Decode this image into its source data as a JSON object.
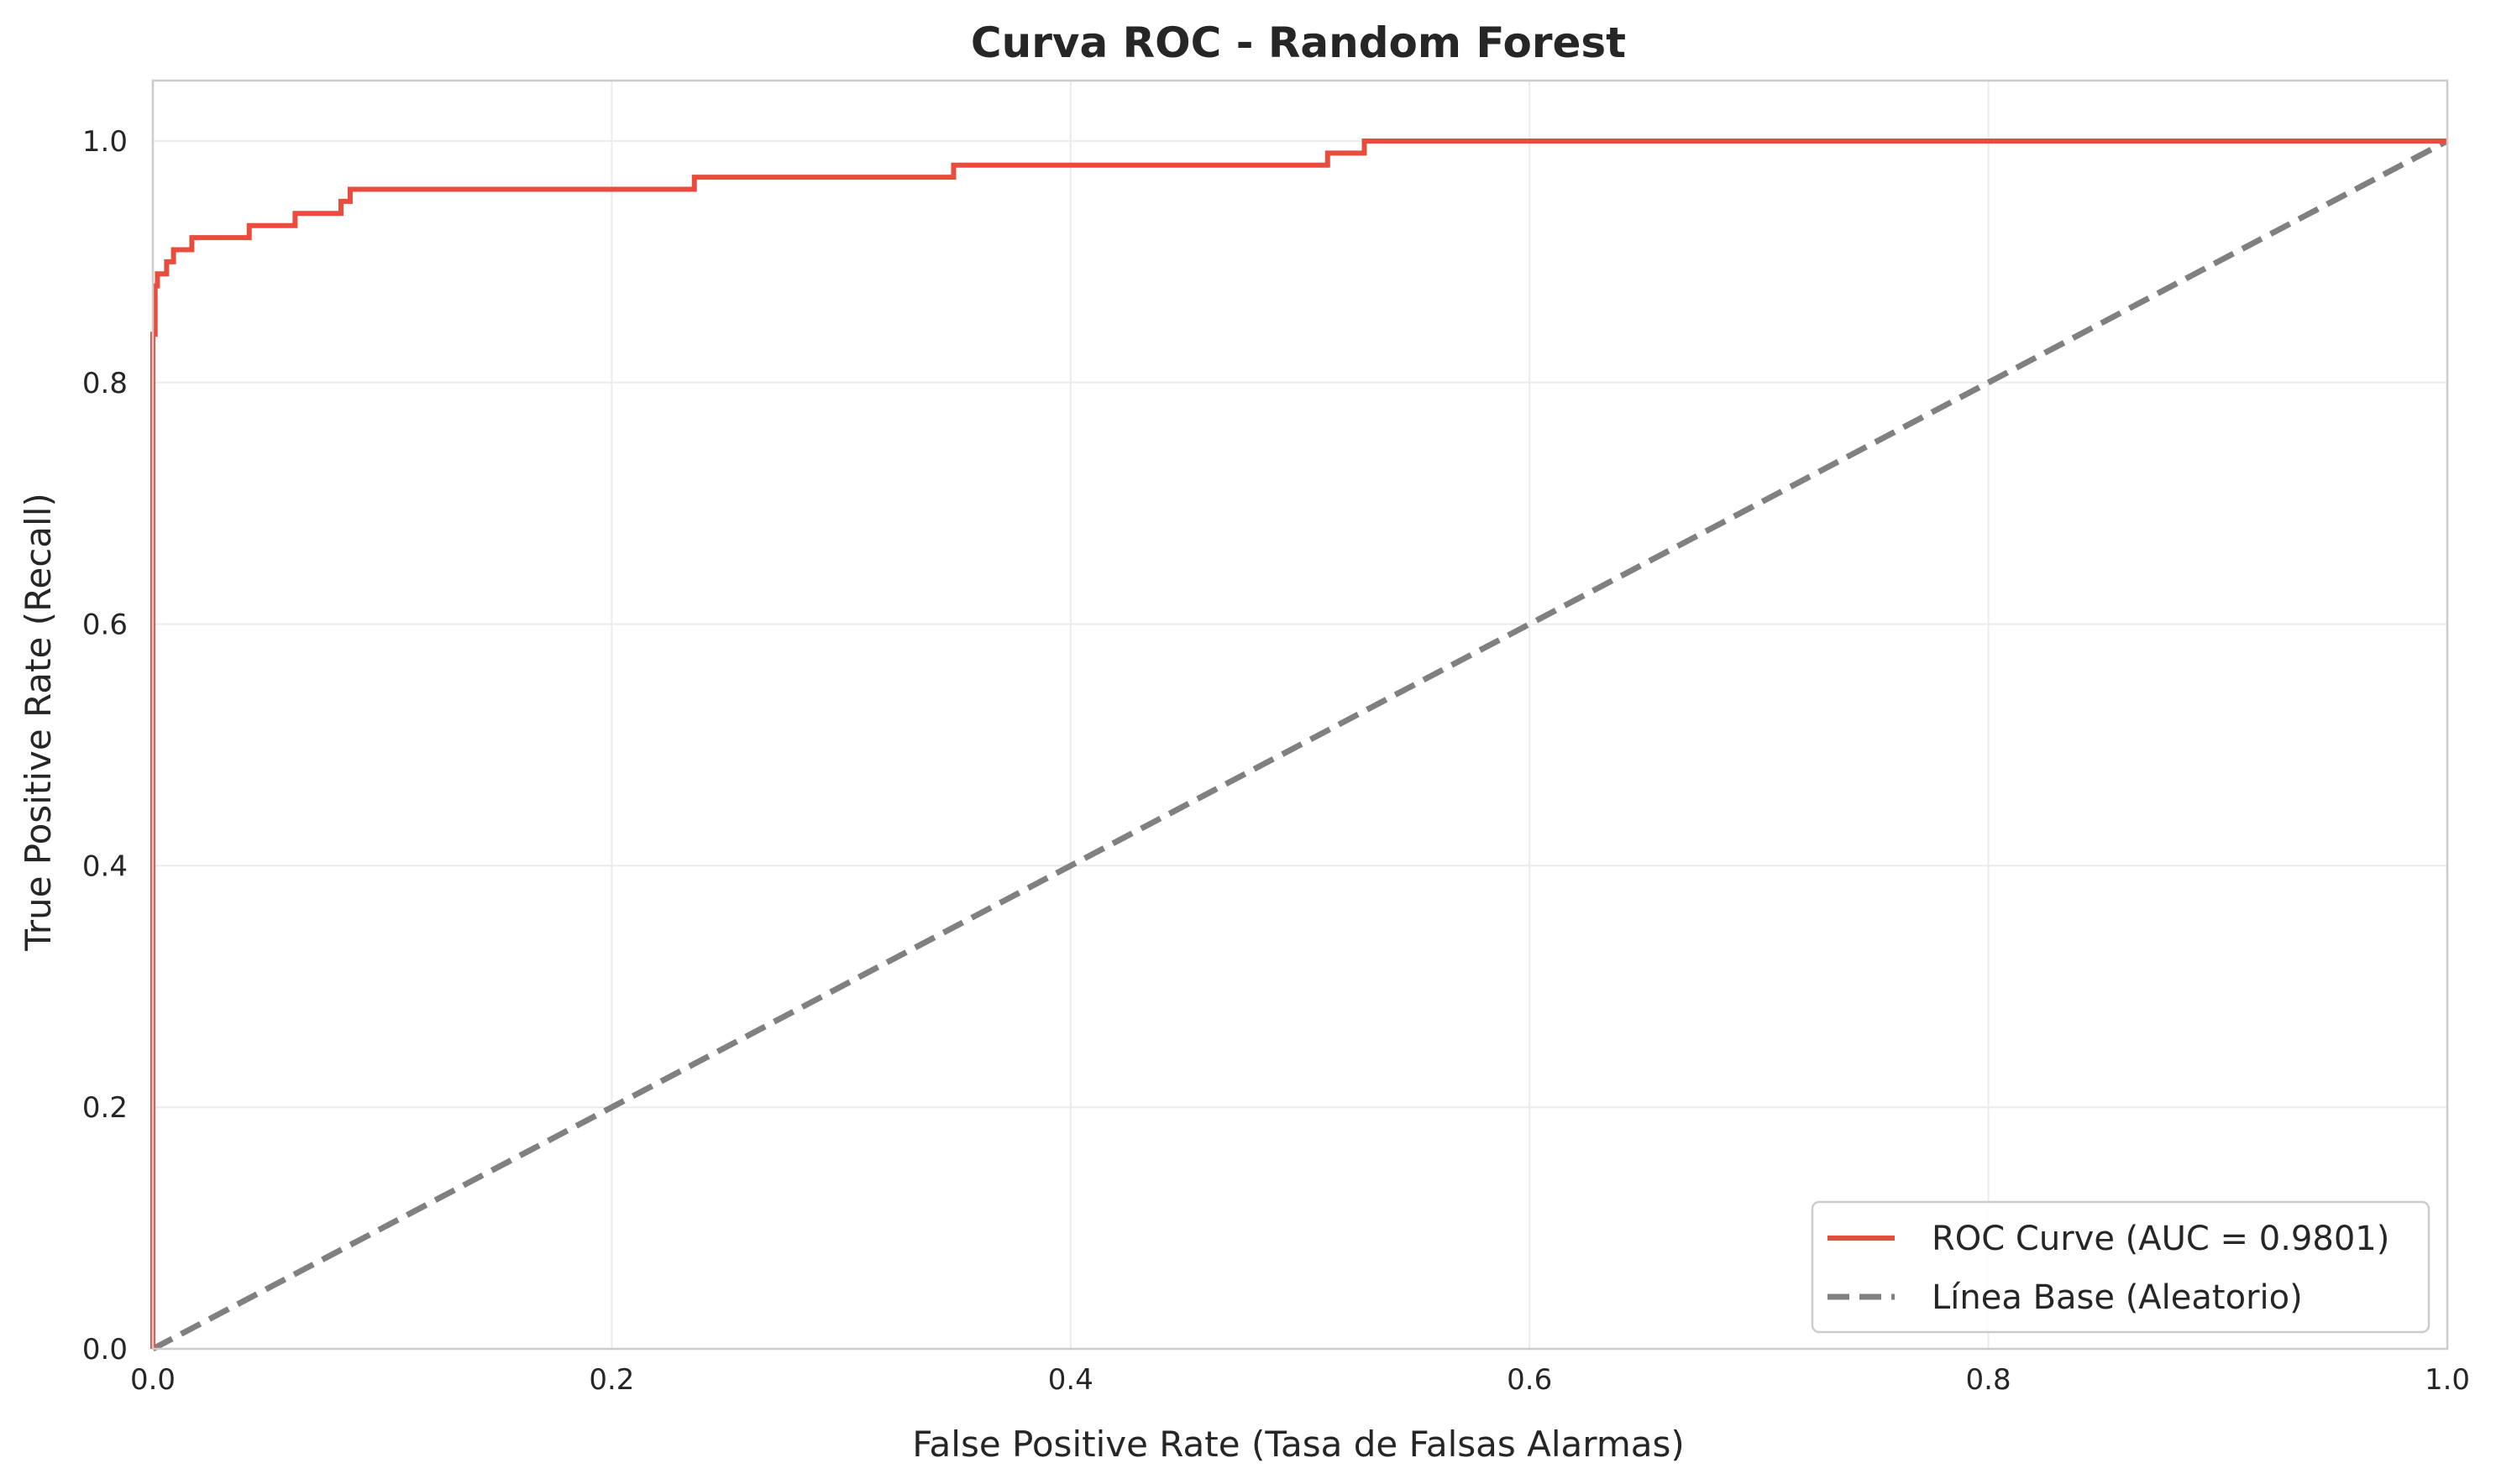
{
  "chart_data": {
    "type": "line",
    "title": "Curva ROC - Random Forest",
    "xlabel": "False Positive Rate (Tasa de Falsas Alarmas)",
    "ylabel": "True Positive Rate (Recall)",
    "xlim": [
      0.0,
      1.0
    ],
    "ylim": [
      0.0,
      1.05
    ],
    "xticks": [
      "0.0",
      "0.2",
      "0.4",
      "0.6",
      "0.8",
      "1.0"
    ],
    "yticks": [
      "0.0",
      "0.2",
      "0.4",
      "0.6",
      "0.8",
      "1.0"
    ],
    "grid": true,
    "legend_position": "bottom-right",
    "series": [
      {
        "name": "ROC Curve (AUC = 0.9801)",
        "color": "#e74c3c",
        "style": "solid",
        "x": [
          0.0,
          0.0,
          0.001,
          0.001,
          0.002,
          0.002,
          0.006,
          0.006,
          0.009,
          0.009,
          0.017,
          0.017,
          0.042,
          0.042,
          0.062,
          0.062,
          0.082,
          0.082,
          0.086,
          0.086,
          0.236,
          0.236,
          0.349,
          0.349,
          0.512,
          0.512,
          0.528,
          0.528,
          1.0
        ],
        "y": [
          0.0,
          0.84,
          0.84,
          0.88,
          0.88,
          0.89,
          0.89,
          0.9,
          0.9,
          0.91,
          0.91,
          0.92,
          0.92,
          0.93,
          0.93,
          0.94,
          0.94,
          0.95,
          0.95,
          0.96,
          0.96,
          0.97,
          0.97,
          0.98,
          0.98,
          0.99,
          0.99,
          1.0,
          1.0
        ]
      },
      {
        "name": "Línea Base (Aleatorio)",
        "color": "#808080",
        "style": "dashed",
        "x": [
          0.0,
          1.0
        ],
        "y": [
          0.0,
          1.0
        ]
      }
    ]
  }
}
